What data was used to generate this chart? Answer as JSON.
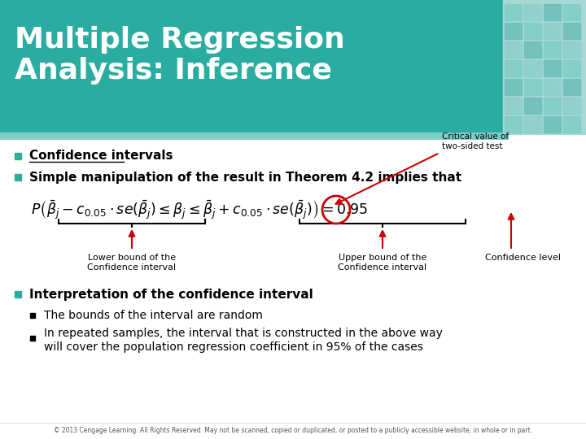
{
  "title_line1": "Multiple Regression",
  "title_line2": "Analysis: Inference",
  "title_bg_color": "#2AADA0",
  "title_text_color": "#FFFFFF",
  "slide_bg_color": "#FFFFFF",
  "bullet_color": "#2AADA0",
  "bullet1_text": "Confidence intervals",
  "bullet2_text": "Simple manipulation of the result in Theorem 4.2 implies that",
  "bullet3_text": "Interpretation of the confidence interval",
  "sub_bullet1": "The bounds of the interval are random",
  "sub_bullet2_line1": "In repeated samples, the interval that is constructed in the above way",
  "sub_bullet2_line2": "will cover the population regression coefficient in 95% of the cases",
  "footer": "© 2013 Cengage Learning. All Rights Reserved. May not be scanned, copied or duplicated, or posted to a publicly accessible website, in whole or in part.",
  "arrow_color": "#CC0000",
  "circle_color": "#CC0000",
  "lower_bound_label": "Lower bound of the\nConfidence interval",
  "upper_bound_label": "Upper bound of the\nConfidence interval",
  "confidence_level_label": "Confidence level",
  "critical_value_label": "Critical value of\ntwo-sided test"
}
